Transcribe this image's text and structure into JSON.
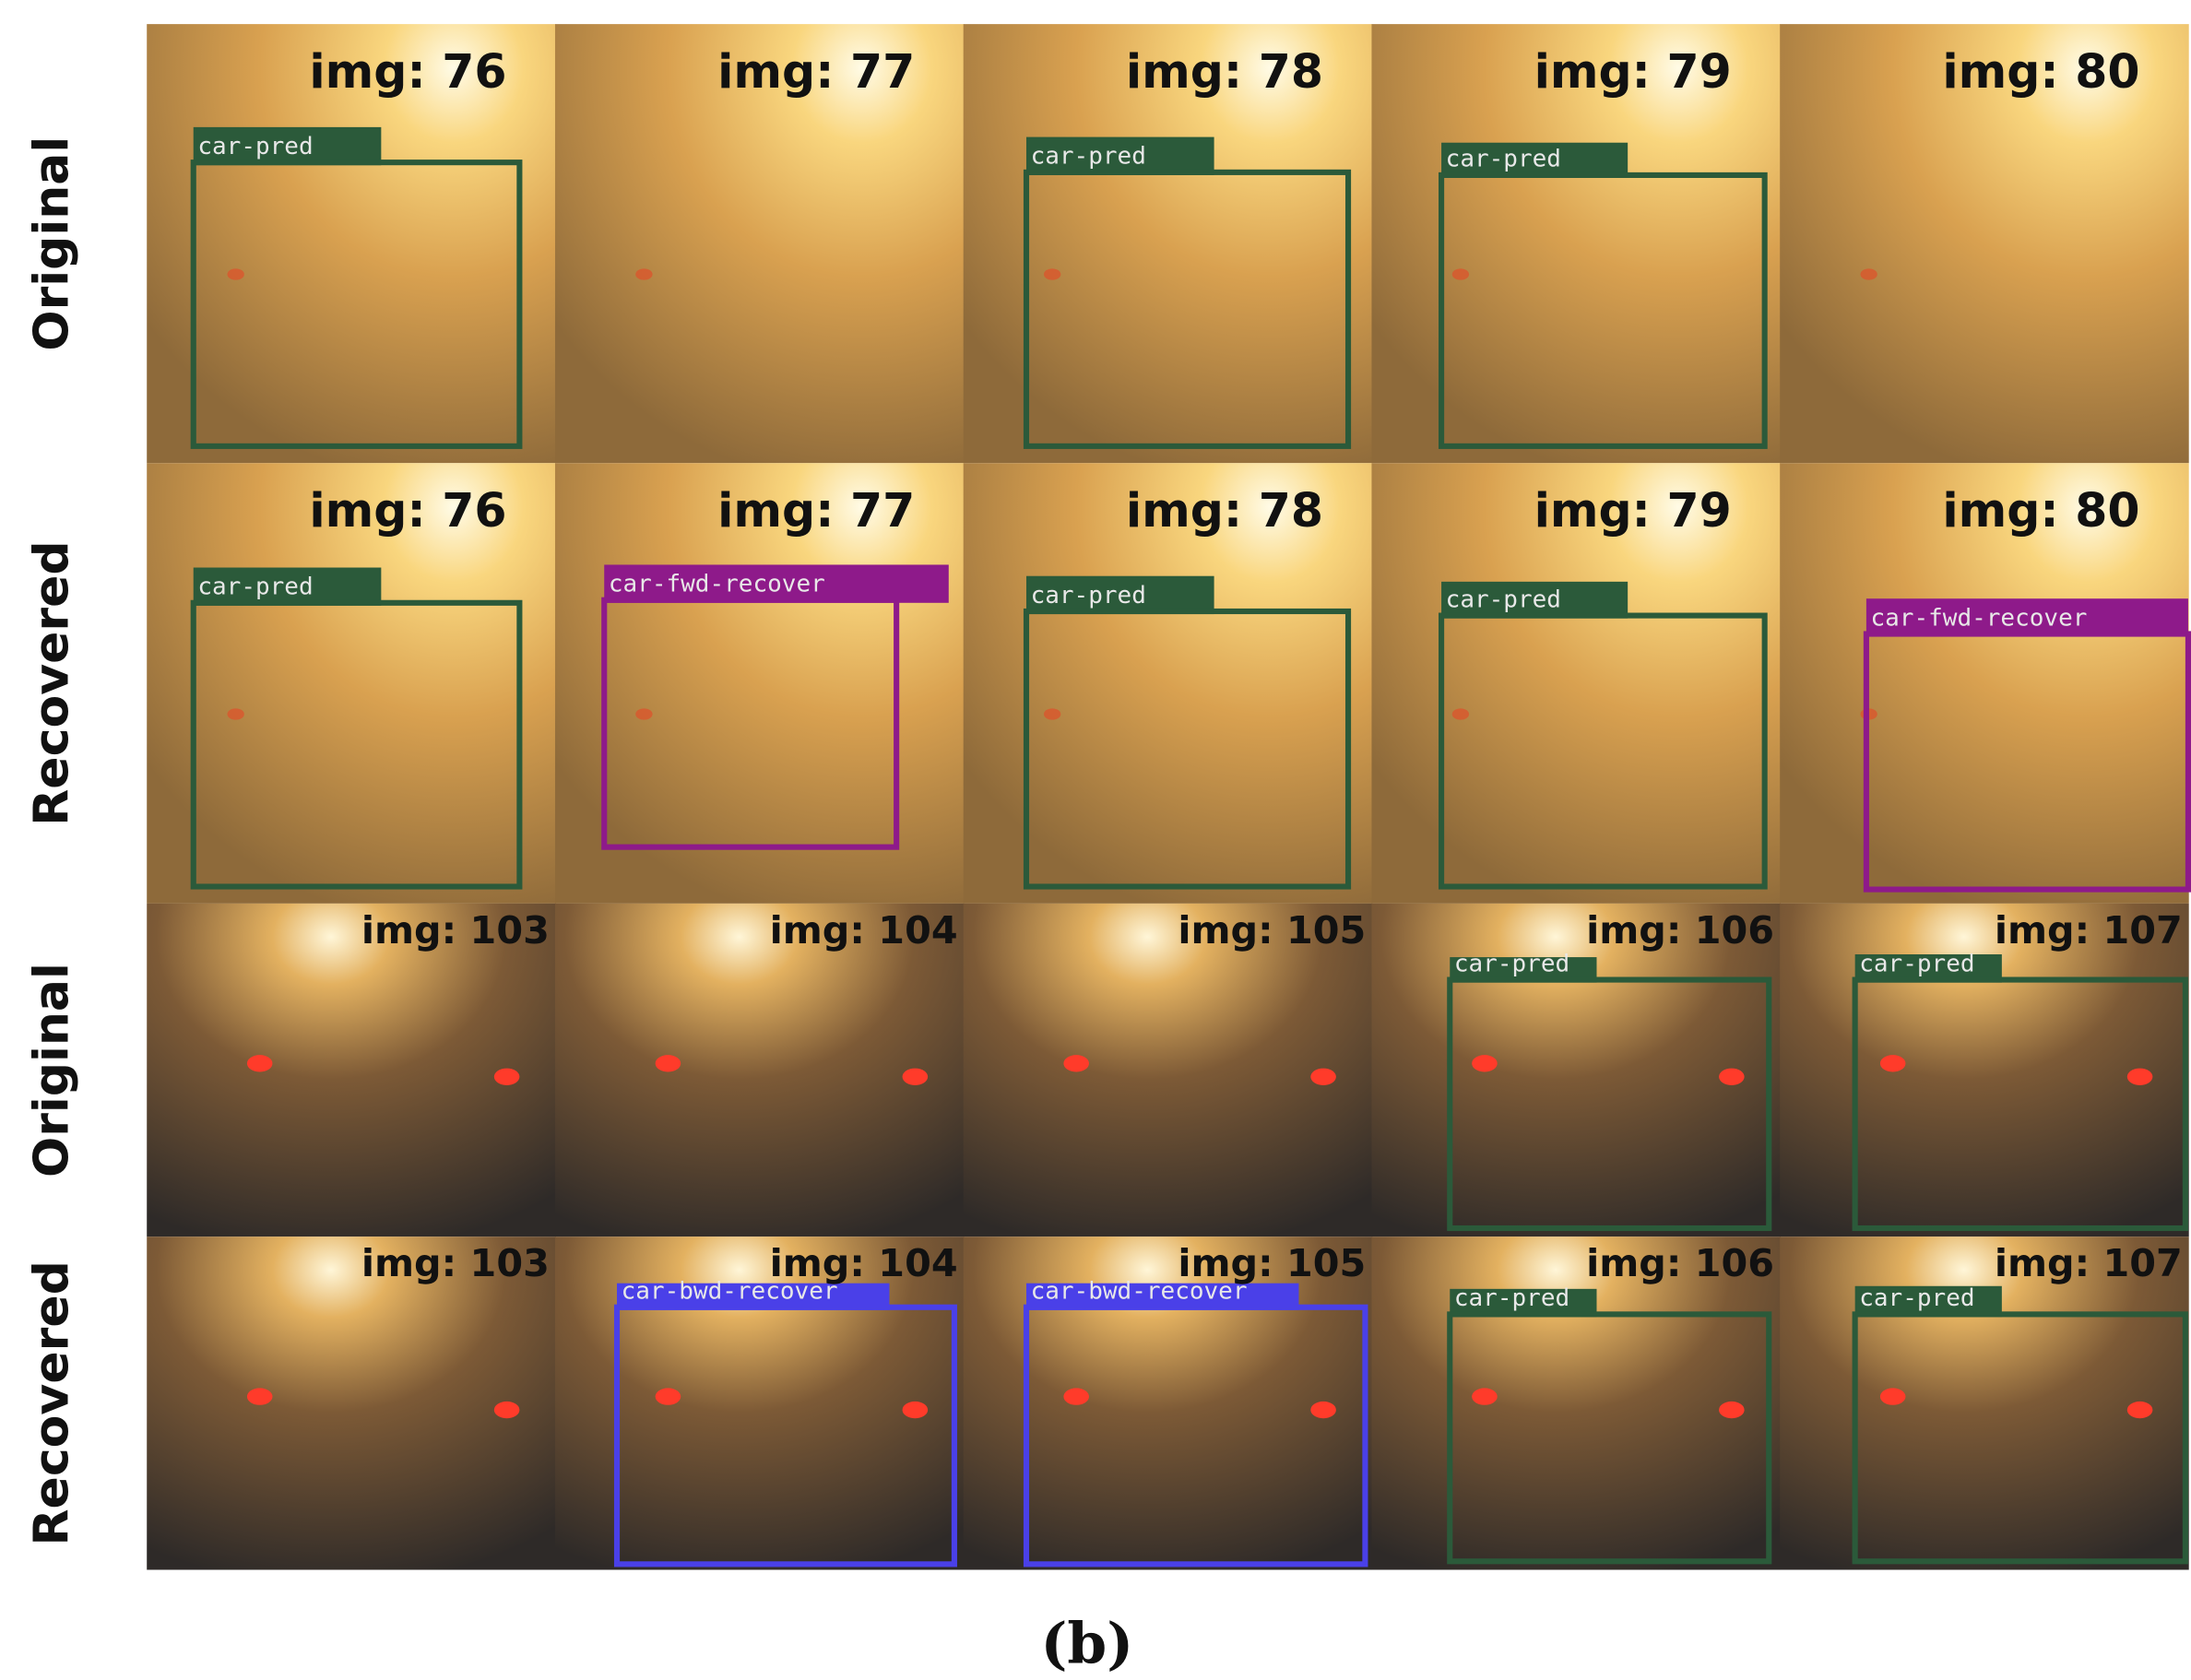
{
  "rows": [
    {
      "label": "Original",
      "cells": [
        {
          "img": "img: 76",
          "box": {
            "label": "car-pred",
            "color": "#2b5a3a"
          }
        },
        {
          "img": "img: 77"
        },
        {
          "img": "img: 78",
          "box": {
            "label": "car-pred",
            "color": "#2b5a3a"
          }
        },
        {
          "img": "img: 79",
          "box": {
            "label": "car-pred",
            "color": "#2b5a3a"
          }
        },
        {
          "img": "img: 80"
        }
      ]
    },
    {
      "label": "Recovered",
      "cells": [
        {
          "img": "img: 76",
          "box": {
            "label": "car-pred",
            "color": "#2b5a3a"
          }
        },
        {
          "img": "img: 77",
          "box": {
            "label": "car-fwd-recover",
            "color": "#8e1a8a"
          }
        },
        {
          "img": "img: 78",
          "box": {
            "label": "car-pred",
            "color": "#2b5a3a"
          }
        },
        {
          "img": "img: 79",
          "box": {
            "label": "car-pred",
            "color": "#2b5a3a"
          }
        },
        {
          "img": "img: 80",
          "box": {
            "label": "car-fwd-recover",
            "color": "#8e1a8a"
          }
        }
      ]
    },
    {
      "label": "Original",
      "cells": [
        {
          "img": "img: 103"
        },
        {
          "img": "img: 104"
        },
        {
          "img": "img: 105"
        },
        {
          "img": "img: 106",
          "box": {
            "label": "car-pred",
            "color": "#2b5a3a"
          }
        },
        {
          "img": "img: 107",
          "box": {
            "label": "car-pred",
            "color": "#2b5a3a"
          }
        }
      ]
    },
    {
      "label": "Recovered",
      "cells": [
        {
          "img": "img: 103"
        },
        {
          "img": "img: 104",
          "box": {
            "label": "car-bwd-recover",
            "color": "#4a40e8"
          }
        },
        {
          "img": "img: 105",
          "box": {
            "label": "car-bwd-recover",
            "color": "#4a40e8"
          }
        },
        {
          "img": "img: 106",
          "box": {
            "label": "car-pred",
            "color": "#2b5a3a"
          }
        },
        {
          "img": "img: 107",
          "box": {
            "label": "car-pred",
            "color": "#2b5a3a"
          }
        }
      ]
    }
  ],
  "caption": "(b)"
}
